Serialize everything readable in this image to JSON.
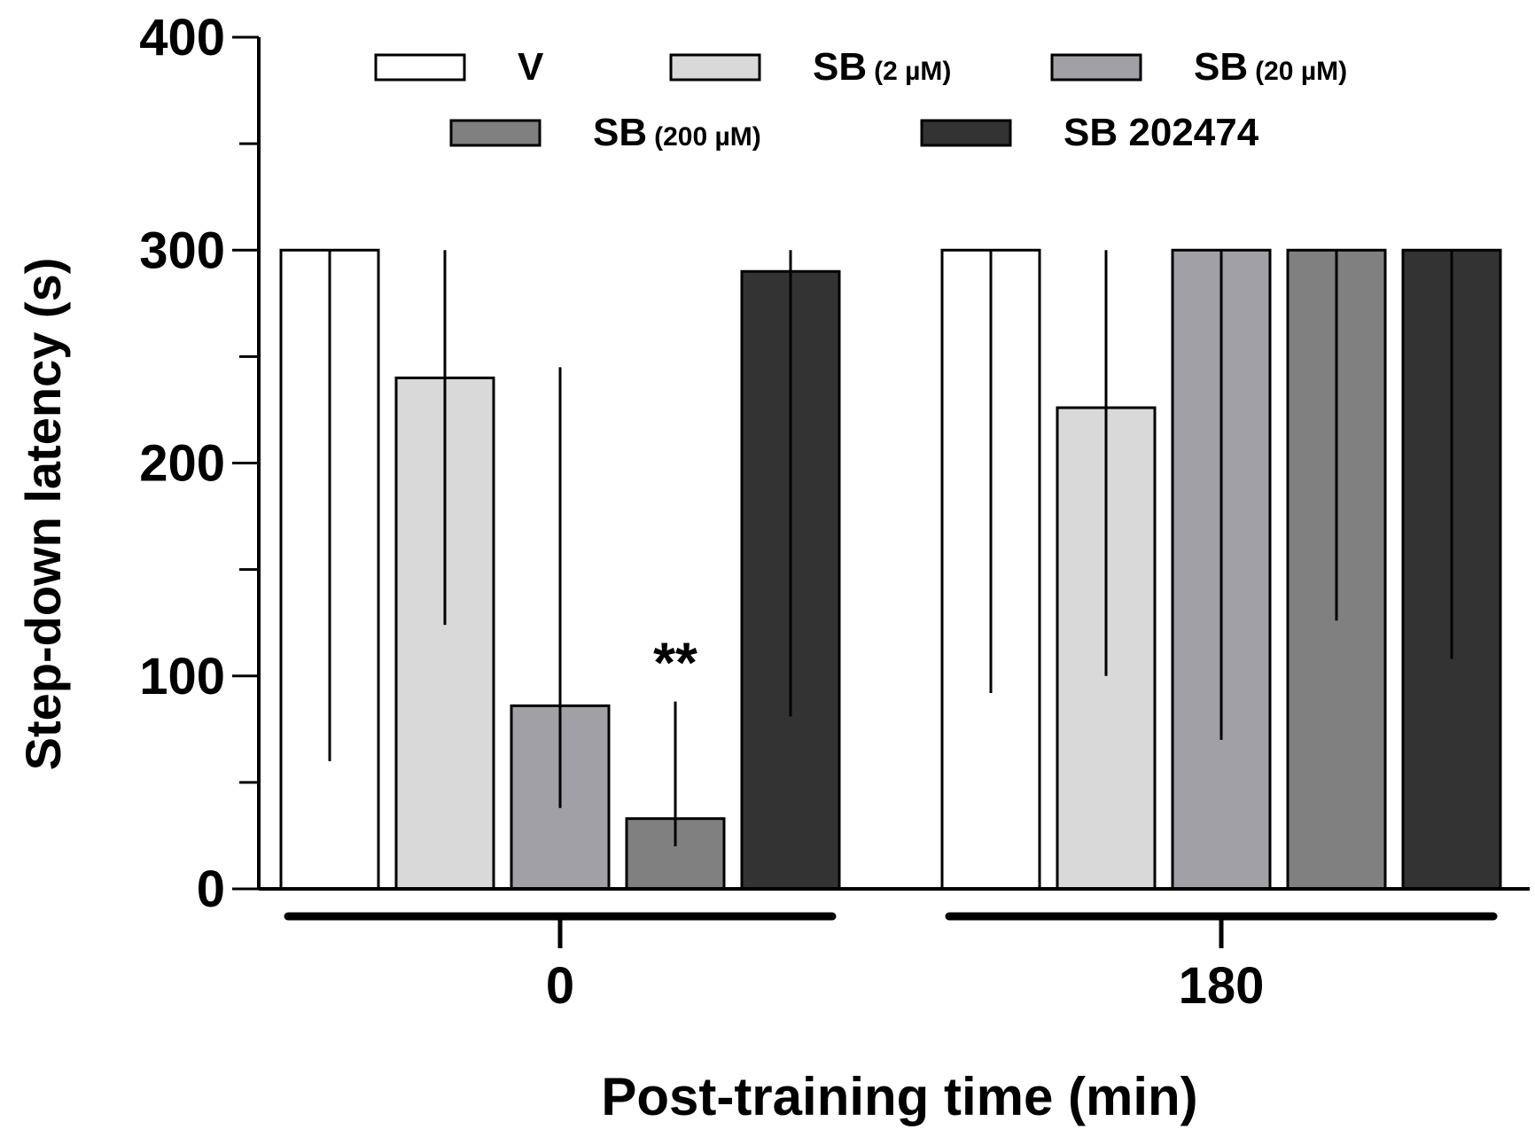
{
  "chart_data": {
    "type": "bar",
    "title": "",
    "xlabel": "Post-training time (min)",
    "ylabel": "Step-down latency (s)",
    "ylim": [
      0,
      400
    ],
    "y_ticks": [
      "0",
      "100",
      "200",
      "300",
      "400"
    ],
    "categories": [
      "0",
      "180"
    ],
    "series": [
      {
        "name": "V",
        "sub": "",
        "color": "#ffffff",
        "values": [
          300,
          300
        ],
        "err_low": [
          60,
          92
        ],
        "err_high": [
          300,
          300
        ]
      },
      {
        "name": "SB",
        "sub": "(2 µM)",
        "color": "#d9d9d9",
        "values": [
          240,
          226
        ],
        "err_low": [
          124,
          100
        ],
        "err_high": [
          300,
          300
        ]
      },
      {
        "name": "SB",
        "sub": "(20 µM)",
        "color": "#a0a0a6",
        "values": [
          86,
          300
        ],
        "err_low": [
          38,
          70
        ],
        "err_high": [
          245,
          300
        ]
      },
      {
        "name": "SB",
        "sub": "(200 µM)",
        "color": "#808080",
        "values": [
          33,
          300
        ],
        "err_low": [
          20,
          126
        ],
        "err_high": [
          88,
          300
        ]
      },
      {
        "name": "SB 202474",
        "sub": "",
        "color": "#333333",
        "values": [
          290,
          300
        ],
        "err_low": [
          81,
          108
        ],
        "err_high": [
          300,
          300
        ]
      }
    ],
    "annotations": [
      {
        "text": "**",
        "category": "0",
        "series_index": 3
      }
    ],
    "legend_position": "top",
    "grid": false
  }
}
